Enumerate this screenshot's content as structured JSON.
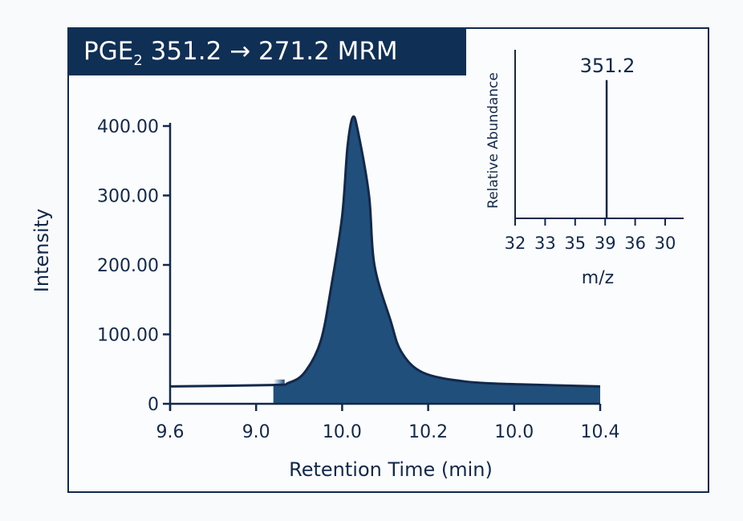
{
  "chart_data": [
    {
      "type": "area",
      "title_main": "PGE",
      "title_sub": "2",
      "title_rest": " 351.2 → 271.2 MRM",
      "xlabel": "Retention Time (min)",
      "ylabel": "Intensity",
      "x_tick_labels": [
        "9.6",
        "9.0",
        "10.0",
        "10.2",
        "10.0",
        "10.4"
      ],
      "y_tick_labels": [
        "0",
        "100.00",
        "200.00",
        "300.00",
        "400.00"
      ],
      "y_ticks": [
        0,
        100,
        200,
        300,
        400
      ],
      "xlim": [
        9.6,
        10.4
      ],
      "ylim": [
        0,
        400
      ],
      "grid": false,
      "fill_start_x": 9.81,
      "series": [
        {
          "x": [
            9.6,
            9.79,
            9.82,
            9.85,
            9.88,
            9.9,
            9.92,
            9.93,
            9.94,
            9.95,
            9.97,
            9.98,
            10.01,
            10.03,
            10.07,
            10.15,
            10.25,
            10.4
          ],
          "y": [
            25,
            27,
            30,
            45,
            90,
            170,
            270,
            370,
            413,
            390,
            300,
            200,
            120,
            75,
            45,
            32,
            28,
            25
          ]
        }
      ],
      "colors": {
        "fill": "#1f4f7a",
        "line": "#13294b",
        "title_bg": "#0f2f55"
      }
    },
    {
      "type": "bar",
      "xlabel": "m/z",
      "ylabel": "Relative Abundance",
      "x_tick_labels": [
        "32",
        "33",
        "35",
        "39",
        "36",
        "30"
      ],
      "peak_label": "351.2",
      "peak_tick_index": 3.05,
      "peak_relative_abundance": 0.82
    }
  ]
}
